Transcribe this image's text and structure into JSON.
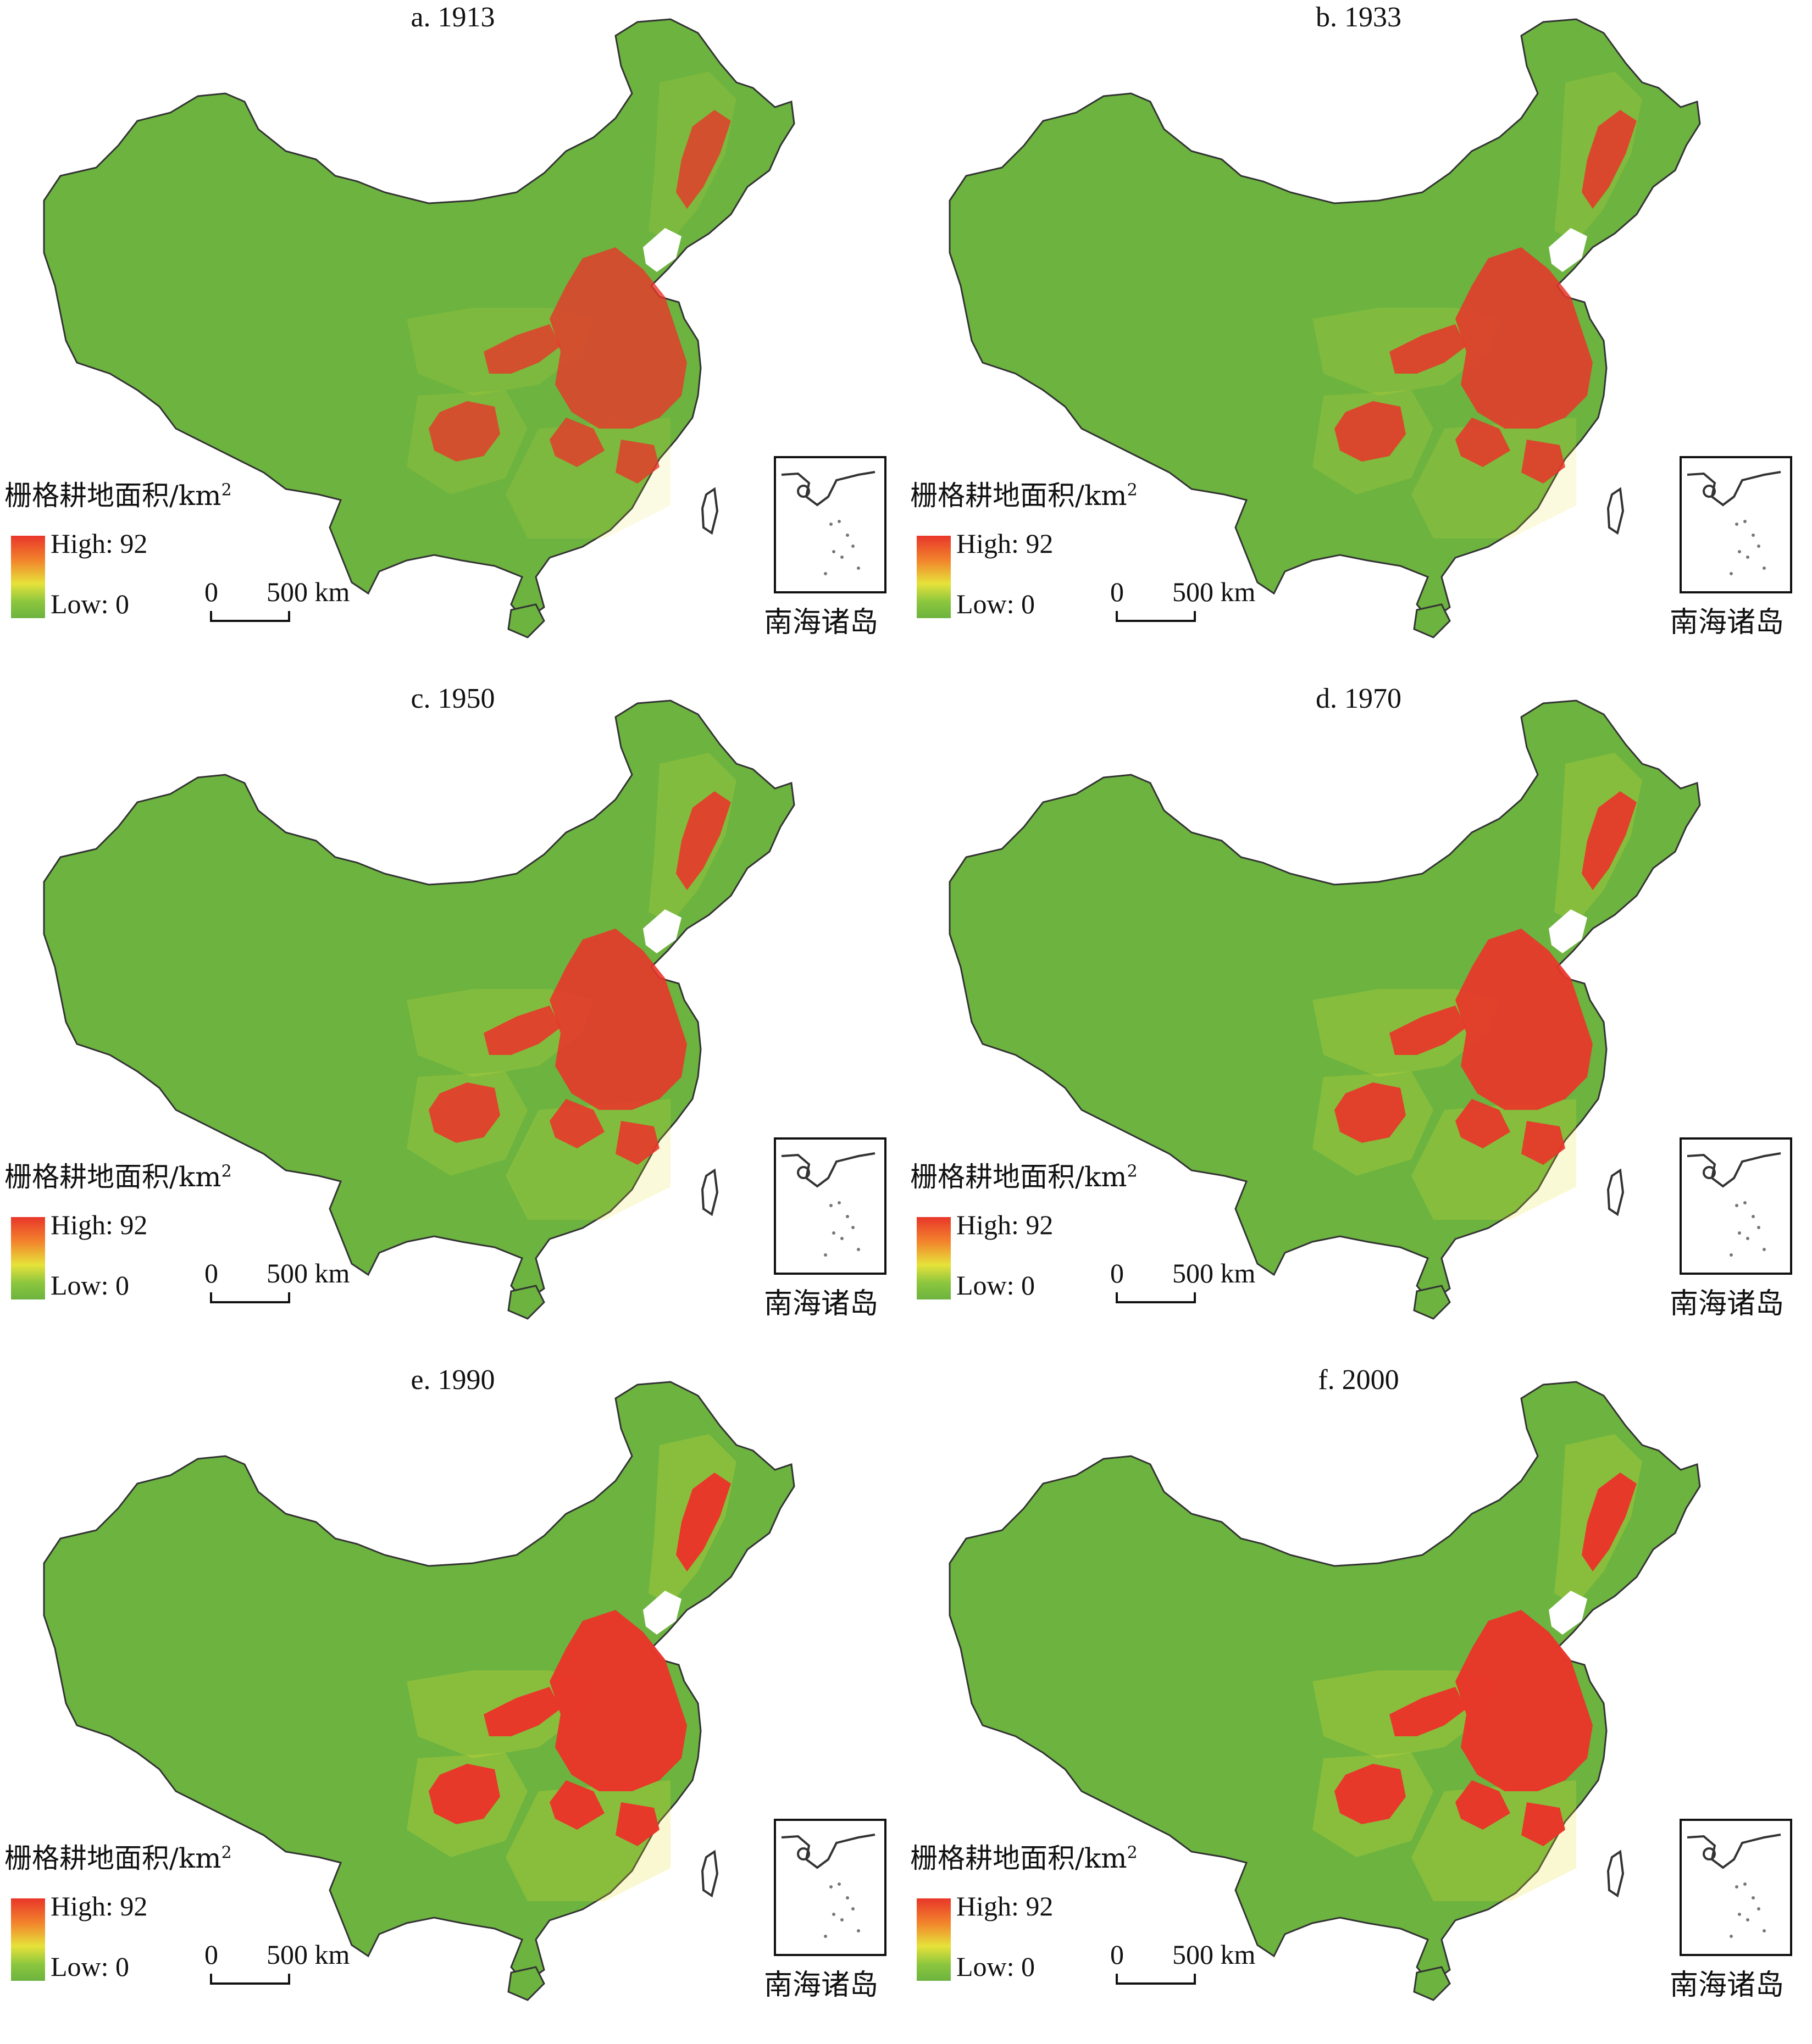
{
  "legend": {
    "title": "栅格耕地面积/km",
    "title_sup": "2",
    "high": "High: 92",
    "low": "Low: 0"
  },
  "scale": {
    "zero": "0",
    "dist": "500 km"
  },
  "inset_label": "南海诸岛",
  "colors": {
    "low": "#6cb33f",
    "mid": "#e6e23a",
    "high": "#e8362a",
    "border": "#333333"
  },
  "panels": [
    {
      "id": "a",
      "title": "a. 1913",
      "intensity": 0.55
    },
    {
      "id": "b",
      "title": "b. 1933",
      "intensity": 0.7
    },
    {
      "id": "c",
      "title": "c. 1950",
      "intensity": 0.75
    },
    {
      "id": "d",
      "title": "d. 1970",
      "intensity": 0.85
    },
    {
      "id": "e",
      "title": "e. 1990",
      "intensity": 0.95
    },
    {
      "id": "f",
      "title": "f. 2000",
      "intensity": 0.95
    }
  ]
}
